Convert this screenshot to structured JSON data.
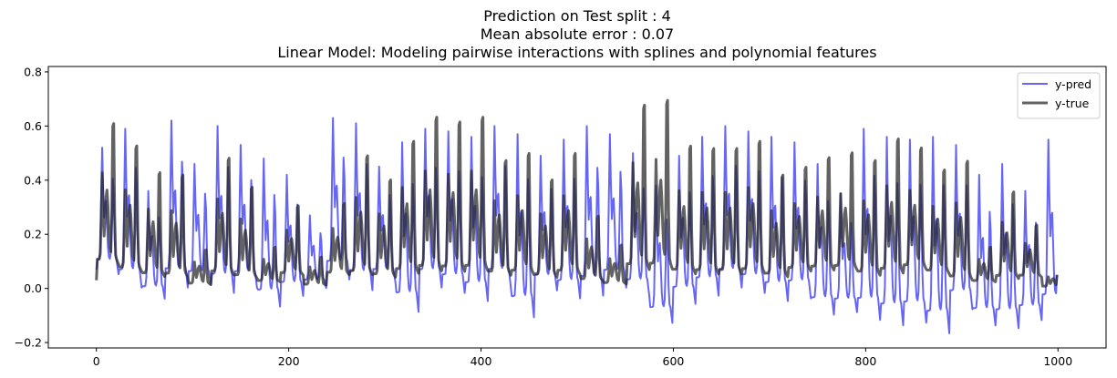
{
  "chart_data": {
    "type": "line",
    "title_lines": [
      "Prediction on Test split : 4",
      "Mean absolute error : 0.07",
      "Linear Model: Modeling pairwise interactions with splines and polynomial features"
    ],
    "xlabel": "",
    "ylabel": "",
    "xlim": [
      -50,
      1050
    ],
    "ylim": [
      -0.22,
      0.82
    ],
    "xticks": [
      0,
      200,
      400,
      600,
      800,
      1000
    ],
    "yticks": [
      -0.2,
      0.0,
      0.2,
      0.4,
      0.6,
      0.8
    ],
    "ytick_labels": [
      "−0.2",
      "0.0",
      "0.2",
      "0.4",
      "0.6",
      "0.8"
    ],
    "grid": false,
    "legend_position": "top-right",
    "n_points": 1000,
    "daily_period": 24,
    "series": [
      {
        "name": "y-pred",
        "color": "#0000ee",
        "opacity": 0.6,
        "stroke_width": 2,
        "daily_peaks": [
          0.52,
          0.59,
          0.36,
          0.62,
          0.46,
          0.6,
          0.53,
          0.48,
          0.42,
          0.27,
          0.63,
          0.61,
          0.45,
          0.54,
          0.59,
          0.58,
          0.56,
          0.6,
          0.57,
          0.49,
          0.55,
          0.6,
          0.57,
          0.5,
          0.38,
          0.49,
          0.56,
          0.6,
          0.58,
          0.56,
          0.54,
          0.46,
          0.35,
          0.59,
          0.56,
          0.55,
          0.56,
          0.53,
          0.42,
          0.46,
          0.36,
          0.55,
          0.5,
          0.46,
          0.5,
          0.48,
          0.41,
          0.42
        ],
        "daily_troughs": [
          0.05,
          0.0,
          -0.04,
          0.0,
          0.01,
          -0.02,
          0.0,
          -0.07,
          -0.03,
          0.0,
          0.03,
          -0.01,
          0.02,
          -0.09,
          0.0,
          -0.02,
          -0.05,
          0.0,
          -0.11,
          -0.01,
          -0.04,
          -0.03,
          0.0,
          -0.03,
          -0.13,
          -0.06,
          -0.03,
          0.0,
          -0.02,
          -0.05,
          -0.04,
          -0.1,
          -0.09,
          -0.12,
          -0.14,
          -0.13,
          -0.17,
          -0.08,
          -0.14,
          -0.15,
          -0.12,
          -0.1,
          -0.08,
          -0.12,
          -0.1,
          -0.04,
          -0.08,
          -0.06
        ]
      },
      {
        "name": "y-true",
        "color": "#262626",
        "opacity": 0.72,
        "stroke_width": 3,
        "daily_peaks": [
          0.68,
          0.59,
          0.48,
          0.47,
          0.16,
          0.54,
          0.42,
          0.17,
          0.34,
          0.13,
          0.35,
          0.55,
          0.45,
          0.61,
          0.71,
          0.69,
          0.71,
          0.53,
          0.56,
          0.45,
          0.56,
          0.3,
          0.18,
          0.76,
          0.78,
          0.59,
          0.58,
          0.58,
          0.61,
          0.47,
          0.5,
          0.54,
          0.56,
          0.53,
          0.62,
          0.58,
          0.49,
          0.53,
          0.17,
          0.4,
          0.26,
          0.07,
          0.15,
          0.18,
          0.22,
          0.24,
          0.19,
          0.21
        ],
        "daily_troughs": [
          0.03,
          0.01,
          0.0,
          0.0,
          0.0,
          0.0,
          0.0,
          0.01,
          0.02,
          0.0,
          0.02,
          0.0,
          0.0,
          0.0,
          0.0,
          0.0,
          0.0,
          0.0,
          0.0,
          0.0,
          0.0,
          0.0,
          0.0,
          0.0,
          0.0,
          0.0,
          0.0,
          0.0,
          0.0,
          0.0,
          0.02,
          0.02,
          0.02,
          0.0,
          0.0,
          0.02,
          0.01,
          -0.02,
          0.01,
          0.0,
          0.02,
          0.0,
          0.01,
          0.02,
          0.0,
          0.02,
          0.03,
          0.04
        ]
      }
    ]
  }
}
